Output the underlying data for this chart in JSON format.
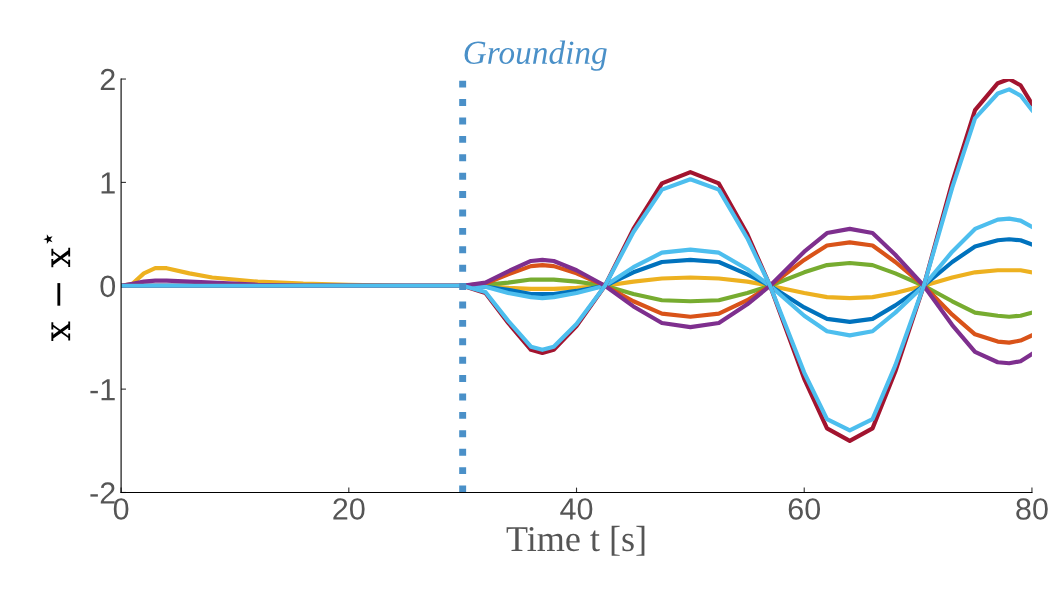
{
  "chart_data": {
    "type": "line",
    "xlabel": "Time t [s]",
    "ylabel": "x − x$^{⋆}$",
    "x": [
      0,
      1,
      2,
      3,
      4,
      6,
      8,
      12,
      16,
      20,
      25,
      30,
      32,
      34,
      36,
      37,
      38,
      40,
      42.5,
      45,
      47.5,
      50,
      52.5,
      55,
      57,
      60,
      62,
      64,
      66,
      68,
      70.5,
      73,
      75,
      77,
      78,
      79,
      80
    ],
    "series": [
      {
        "color": "#edb120",
        "values": [
          0,
          0.02,
          0.12,
          0.17,
          0.17,
          0.12,
          0.08,
          0.04,
          0.02,
          0.01,
          0,
          0,
          0,
          -0.02,
          -0.03,
          -0.03,
          -0.03,
          -0.02,
          0,
          0.04,
          0.07,
          0.08,
          0.07,
          0.04,
          0,
          -0.07,
          -0.11,
          -0.12,
          -0.11,
          -0.07,
          0,
          0.08,
          0.13,
          0.15,
          0.15,
          0.15,
          0.13
        ]
      },
      {
        "color": "#77ac30",
        "values": [
          null,
          null,
          null,
          null,
          null,
          null,
          null,
          null,
          null,
          null,
          null,
          0,
          0.01,
          0.03,
          0.06,
          0.06,
          0.06,
          0.04,
          0,
          -0.08,
          -0.14,
          -0.15,
          -0.14,
          -0.07,
          0,
          0.13,
          0.2,
          0.22,
          0.2,
          0.12,
          0,
          -0.15,
          -0.26,
          -0.29,
          -0.3,
          -0.29,
          -0.26
        ]
      },
      {
        "color": "#0072bd",
        "values": [
          0,
          0,
          0,
          0,
          0,
          0,
          0,
          0,
          0,
          0,
          0,
          0,
          -0.01,
          -0.04,
          -0.08,
          -0.08,
          -0.08,
          -0.05,
          0,
          0.13,
          0.23,
          0.25,
          0.23,
          0.11,
          0,
          -0.21,
          -0.32,
          -0.35,
          -0.32,
          -0.19,
          0,
          0.23,
          0.38,
          0.44,
          0.45,
          0.44,
          0.4
        ]
      },
      {
        "color": "#d95319",
        "values": [
          null,
          null,
          null,
          null,
          null,
          null,
          null,
          null,
          null,
          null,
          null,
          0,
          0.02,
          0.11,
          0.19,
          0.2,
          0.19,
          0.12,
          0,
          -0.15,
          -0.27,
          -0.3,
          -0.27,
          -0.14,
          0,
          0.25,
          0.39,
          0.42,
          0.39,
          0.23,
          0,
          -0.28,
          -0.47,
          -0.54,
          -0.55,
          -0.53,
          -0.48
        ]
      },
      {
        "color": "#4dbeee",
        "values": [
          0,
          0,
          0,
          0,
          0,
          0,
          0,
          0,
          0,
          0,
          0,
          0,
          -0.01,
          -0.07,
          -0.11,
          -0.12,
          -0.11,
          -0.07,
          0,
          0.18,
          0.32,
          0.35,
          0.32,
          0.16,
          0,
          -0.29,
          -0.44,
          -0.48,
          -0.44,
          -0.26,
          0,
          0.33,
          0.55,
          0.64,
          0.65,
          0.63,
          0.57
        ]
      },
      {
        "color": "#7e2f8e",
        "values": [
          0,
          0.02,
          0.04,
          0.05,
          0.05,
          0.04,
          0.03,
          0.01,
          0,
          0,
          0,
          0,
          0.03,
          0.14,
          0.24,
          0.25,
          0.24,
          0.15,
          0,
          -0.2,
          -0.36,
          -0.4,
          -0.36,
          -0.18,
          0,
          0.33,
          0.51,
          0.55,
          0.51,
          0.3,
          0,
          -0.38,
          -0.64,
          -0.74,
          -0.75,
          -0.73,
          -0.66
        ]
      },
      {
        "color": "#a2142f",
        "values": [
          0,
          0,
          0,
          0,
          0,
          0,
          0,
          0,
          0,
          0,
          0,
          0,
          -0.07,
          -0.36,
          -0.62,
          -0.65,
          -0.62,
          -0.39,
          0,
          0.55,
          0.99,
          1.1,
          0.99,
          0.5,
          0,
          -0.9,
          -1.38,
          -1.5,
          -1.38,
          -0.83,
          0,
          1.0,
          1.7,
          1.96,
          2.0,
          1.94,
          1.76
        ]
      },
      {
        "color": "#4dbeee",
        "values": [
          0,
          0,
          0,
          0,
          0,
          0,
          0,
          0,
          0,
          0,
          0,
          0,
          -0.06,
          -0.34,
          -0.59,
          -0.62,
          -0.59,
          -0.37,
          0,
          0.52,
          0.93,
          1.03,
          0.93,
          0.46,
          0,
          -0.84,
          -1.29,
          -1.4,
          -1.29,
          -0.77,
          0,
          0.95,
          1.62,
          1.86,
          1.9,
          1.84,
          1.7
        ]
      }
    ],
    "xlim": [
      0,
      80
    ],
    "xticks": [
      0,
      20,
      40,
      60,
      80
    ],
    "ylim": [
      -2,
      2
    ],
    "yticks": [
      -2,
      -1,
      0,
      1,
      2
    ],
    "ref_lines": [
      {
        "axis": "x",
        "value": 30,
        "label": "Grounding",
        "color": "#4a90c8",
        "line_style": "dotted"
      }
    ],
    "grid": false,
    "legend": false,
    "marker": "none",
    "line_style": "solid"
  }
}
